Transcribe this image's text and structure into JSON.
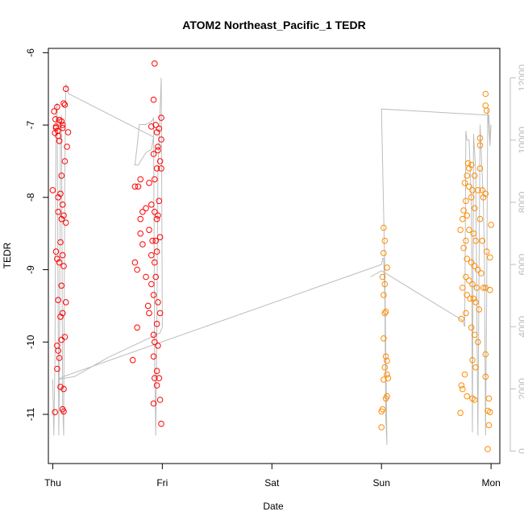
{
  "chart_data": {
    "type": "scatter",
    "title": "ATOM2 Northeast_Pacific_1 TEDR",
    "xlabel": "Date",
    "ylabel": "TEDR",
    "x_tick_labels": [
      "Thu",
      "Fri",
      "Sat",
      "Sun",
      "Mon"
    ],
    "xlim": [
      -0.04,
      4.08
    ],
    "ylim": [
      -11.68,
      -5.94
    ],
    "y_ticks": [
      -11,
      -10,
      -9,
      -8,
      -7,
      -6
    ],
    "y2_ticks": [
      0,
      2000,
      4000,
      6000,
      8000,
      10000,
      12000
    ],
    "y2lim": [
      -400,
      12950
    ],
    "colors": {
      "day1": "#ff0000",
      "day2": "#ff8c00",
      "altitude_line": "#bdbdbd"
    },
    "series": [
      {
        "color": "#ff0000",
        "points": [
          [
            0.012,
            -6.81
          ],
          [
            0.025,
            -6.92
          ],
          [
            0.03,
            -7.04
          ],
          [
            0.045,
            -7.08
          ],
          [
            0.05,
            -7.15
          ],
          [
            0.02,
            -7.11
          ],
          [
            0.06,
            -7.22
          ],
          [
            0.09,
            -7.0
          ],
          [
            0.1,
            -6.7
          ],
          [
            0.12,
            -6.5
          ],
          [
            0.14,
            -7.1
          ],
          [
            0.11,
            -7.5
          ],
          [
            0.13,
            -7.3
          ],
          [
            0.08,
            -7.7
          ],
          [
            0.07,
            -7.95
          ],
          [
            0.09,
            -8.1
          ],
          [
            0.1,
            -8.25
          ],
          [
            0.05,
            -8.2
          ],
          [
            0.08,
            -8.3
          ],
          [
            0.12,
            -8.35
          ],
          [
            0.07,
            -8.62
          ],
          [
            0.09,
            -8.8
          ],
          [
            0.06,
            -8.9
          ],
          [
            0.1,
            -8.95
          ],
          [
            0.03,
            -8.75
          ],
          [
            0.04,
            -8.85
          ],
          [
            0.08,
            -9.22
          ],
          [
            0.12,
            -9.45
          ],
          [
            0.05,
            -9.42
          ],
          [
            0.09,
            -9.6
          ],
          [
            0.07,
            -9.65
          ],
          [
            0.11,
            -9.93
          ],
          [
            0.08,
            -9.97
          ],
          [
            0.04,
            -10.05
          ],
          [
            0.05,
            -10.12
          ],
          [
            0.06,
            -10.22
          ],
          [
            0.04,
            -10.37
          ],
          [
            0.07,
            -10.62
          ],
          [
            0.1,
            -10.65
          ],
          [
            0.09,
            -10.93
          ],
          [
            0.1,
            -10.96
          ],
          [
            0.02,
            -10.97
          ],
          [
            0.0,
            -7.9
          ],
          [
            0.05,
            -8.0
          ],
          [
            0.06,
            -6.93
          ],
          [
            0.08,
            -6.95
          ],
          [
            0.09,
            -7.04
          ],
          [
            0.11,
            -6.72
          ],
          [
            0.04,
            -6.75
          ],
          [
            0.03,
            -7.02
          ]
        ]
      },
      {
        "color": "#ff0000",
        "points": [
          [
            0.93,
            -6.15
          ],
          [
            0.92,
            -6.65
          ],
          [
            0.9,
            -7.02
          ],
          [
            0.95,
            -7.1
          ],
          [
            0.97,
            -7.05
          ],
          [
            0.99,
            -6.9
          ],
          [
            0.96,
            -7.3
          ],
          [
            0.98,
            -7.5
          ],
          [
            0.92,
            -7.4
          ],
          [
            0.95,
            -7.6
          ],
          [
            0.99,
            -7.6
          ],
          [
            0.93,
            -7.75
          ],
          [
            0.88,
            -7.8
          ],
          [
            0.8,
            -7.75
          ],
          [
            0.75,
            -7.85
          ],
          [
            0.78,
            -7.85
          ],
          [
            0.82,
            -8.2
          ],
          [
            0.85,
            -8.15
          ],
          [
            0.9,
            -8.1
          ],
          [
            0.93,
            -8.2
          ],
          [
            0.97,
            -8.05
          ],
          [
            0.96,
            -8.25
          ],
          [
            0.95,
            -8.3
          ],
          [
            0.8,
            -8.3
          ],
          [
            0.8,
            -8.5
          ],
          [
            0.88,
            -8.45
          ],
          [
            0.91,
            -8.6
          ],
          [
            0.94,
            -8.6
          ],
          [
            0.98,
            -8.55
          ],
          [
            0.82,
            -8.65
          ],
          [
            0.9,
            -8.8
          ],
          [
            0.95,
            -8.75
          ],
          [
            0.93,
            -8.9
          ],
          [
            0.75,
            -8.9
          ],
          [
            0.77,
            -9.0
          ],
          [
            0.85,
            -9.1
          ],
          [
            0.9,
            -9.2
          ],
          [
            0.94,
            -9.1
          ],
          [
            0.92,
            -9.35
          ],
          [
            0.96,
            -9.45
          ],
          [
            0.87,
            -9.5
          ],
          [
            0.88,
            -9.6
          ],
          [
            0.98,
            -9.6
          ],
          [
            0.95,
            -9.75
          ],
          [
            0.92,
            -9.9
          ],
          [
            0.93,
            -10.0
          ],
          [
            0.96,
            -10.05
          ],
          [
            0.92,
            -10.2
          ],
          [
            0.95,
            -10.4
          ],
          [
            0.93,
            -10.5
          ],
          [
            0.97,
            -10.5
          ],
          [
            0.95,
            -10.6
          ],
          [
            0.92,
            -10.85
          ],
          [
            0.98,
            -10.8
          ],
          [
            0.99,
            -11.13
          ],
          [
            0.73,
            -10.25
          ],
          [
            0.77,
            -9.8
          ],
          [
            0.94,
            -7.0
          ],
          [
            0.96,
            -7.35
          ],
          [
            0.99,
            -7.2
          ]
        ]
      },
      {
        "color": "#ff8c00",
        "points": [
          [
            3.02,
            -8.42
          ],
          [
            3.03,
            -8.6
          ],
          [
            3.02,
            -8.77
          ],
          [
            3.05,
            -8.97
          ],
          [
            3.01,
            -9.1
          ],
          [
            3.03,
            -9.2
          ],
          [
            3.02,
            -9.35
          ],
          [
            3.04,
            -9.58
          ],
          [
            3.03,
            -9.6
          ],
          [
            3.02,
            -9.95
          ],
          [
            3.04,
            -10.2
          ],
          [
            3.05,
            -10.26
          ],
          [
            3.03,
            -10.35
          ],
          [
            3.05,
            -10.45
          ],
          [
            3.06,
            -10.5
          ],
          [
            3.02,
            -10.52
          ],
          [
            3.05,
            -10.75
          ],
          [
            3.04,
            -10.78
          ],
          [
            3.01,
            -10.93
          ],
          [
            3.0,
            -10.96
          ],
          [
            3.0,
            -11.18
          ]
        ]
      },
      {
        "color": "#ff8c00",
        "points": [
          [
            3.95,
            -6.57
          ],
          [
            3.95,
            -6.73
          ],
          [
            3.96,
            -6.8
          ],
          [
            3.9,
            -7.18
          ],
          [
            3.9,
            -7.28
          ],
          [
            3.79,
            -7.53
          ],
          [
            3.8,
            -7.6
          ],
          [
            3.82,
            -7.55
          ],
          [
            3.78,
            -7.7
          ],
          [
            3.85,
            -7.7
          ],
          [
            3.76,
            -7.8
          ],
          [
            3.8,
            -7.85
          ],
          [
            3.83,
            -7.9
          ],
          [
            3.88,
            -7.9
          ],
          [
            3.92,
            -7.9
          ],
          [
            3.95,
            -7.95
          ],
          [
            3.77,
            -8.05
          ],
          [
            3.82,
            -8.0
          ],
          [
            3.85,
            -8.15
          ],
          [
            3.75,
            -8.18
          ],
          [
            3.78,
            -8.25
          ],
          [
            3.74,
            -8.3
          ],
          [
            3.9,
            -8.3
          ],
          [
            3.8,
            -8.45
          ],
          [
            3.84,
            -8.5
          ],
          [
            3.86,
            -8.6
          ],
          [
            3.72,
            -8.45
          ],
          [
            3.77,
            -8.6
          ],
          [
            3.92,
            -8.6
          ],
          [
            3.96,
            -8.75
          ],
          [
            3.99,
            -8.83
          ],
          [
            3.75,
            -8.7
          ],
          [
            3.78,
            -8.85
          ],
          [
            3.82,
            -8.9
          ],
          [
            3.85,
            -8.95
          ],
          [
            3.88,
            -9.0
          ],
          [
            3.91,
            -9.05
          ],
          [
            3.77,
            -9.1
          ],
          [
            3.8,
            -9.15
          ],
          [
            3.83,
            -9.2
          ],
          [
            3.87,
            -9.25
          ],
          [
            3.93,
            -9.25
          ],
          [
            3.95,
            -9.25
          ],
          [
            3.74,
            -9.25
          ],
          [
            3.78,
            -9.35
          ],
          [
            3.81,
            -9.4
          ],
          [
            3.84,
            -9.4
          ],
          [
            3.86,
            -9.45
          ],
          [
            3.89,
            -9.55
          ],
          [
            3.73,
            -9.68
          ],
          [
            3.77,
            -9.6
          ],
          [
            3.82,
            -9.8
          ],
          [
            3.85,
            -9.9
          ],
          [
            3.88,
            -10.0
          ],
          [
            3.95,
            -10.17
          ],
          [
            3.83,
            -10.25
          ],
          [
            3.86,
            -10.35
          ],
          [
            3.76,
            -10.45
          ],
          [
            3.73,
            -10.6
          ],
          [
            3.74,
            -10.65
          ],
          [
            3.78,
            -10.75
          ],
          [
            3.83,
            -10.78
          ],
          [
            3.85,
            -10.8
          ],
          [
            3.95,
            -10.48
          ],
          [
            3.98,
            -10.78
          ],
          [
            3.97,
            -10.95
          ],
          [
            3.72,
            -10.98
          ],
          [
            3.99,
            -10.97
          ],
          [
            3.98,
            -11.15
          ],
          [
            3.97,
            -11.48
          ],
          [
            4.0,
            -8.38
          ],
          [
            3.99,
            -9.28
          ],
          [
            3.93,
            -8.0
          ],
          [
            3.9,
            -7.6
          ]
        ]
      }
    ]
  }
}
